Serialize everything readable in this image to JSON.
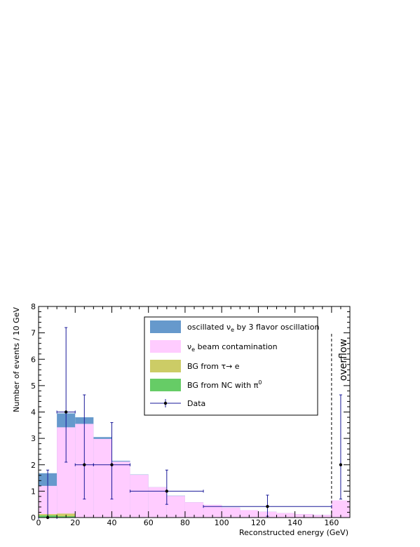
{
  "chart_data": {
    "type": "bar",
    "xlabel": "Reconstructed energy (GeV)",
    "ylabel": "Number of events / 10 GeV",
    "xlim": [
      0,
      170
    ],
    "ylim": [
      0,
      8
    ],
    "x_ticks": [
      0,
      20,
      40,
      60,
      80,
      100,
      120,
      140,
      160
    ],
    "y_ticks": [
      0,
      1,
      2,
      3,
      4,
      5,
      6,
      7,
      8
    ],
    "annotation": "overflow",
    "overflow_line_x": 160,
    "colors": {
      "oscillated": "#6699cc",
      "beam": "#ffccff",
      "tau": "#cccc66",
      "nc": "#66cc66",
      "data": "#1a1a99"
    },
    "series": [
      {
        "key": "nc",
        "edges": [
          0,
          10,
          20
        ],
        "values": [
          0.08,
          0.05
        ]
      },
      {
        "key": "tau",
        "edges": [
          0,
          10,
          20
        ],
        "values": [
          0.13,
          0.15
        ]
      },
      {
        "key": "beam",
        "edges": [
          0,
          10,
          20,
          30,
          40,
          50,
          60,
          70,
          80,
          90,
          100,
          110,
          120,
          130,
          140,
          150,
          160,
          170
        ],
        "values": [
          1.2,
          3.42,
          3.55,
          2.98,
          2.12,
          1.62,
          1.15,
          0.82,
          0.58,
          0.48,
          0.38,
          0.28,
          0.22,
          0.17,
          0.13,
          0.1,
          0.65
        ]
      },
      {
        "key": "oscillated",
        "edges": [
          0,
          10,
          20,
          30,
          40,
          50,
          60,
          70,
          80,
          90,
          100,
          110,
          120,
          130,
          140,
          150,
          160,
          170
        ],
        "values": [
          1.68,
          3.95,
          3.8,
          3.05,
          2.15,
          1.63,
          1.15,
          0.83,
          0.58,
          0.48,
          0.38,
          0.28,
          0.22,
          0.17,
          0.13,
          0.1,
          0.65
        ]
      }
    ],
    "data_points": [
      {
        "x": 5,
        "y": 0,
        "xerr": 5,
        "ylow": 0,
        "yhigh": 1.8
      },
      {
        "x": 15,
        "y": 4,
        "xerr": 5,
        "ylow": 2.1,
        "yhigh": 7.2
      },
      {
        "x": 25,
        "y": 2,
        "xerr": 5,
        "ylow": 0.7,
        "yhigh": 4.65
      },
      {
        "x": 40,
        "y": 2,
        "xerr": 10,
        "ylow": 0.7,
        "yhigh": 3.6
      },
      {
        "x": 70,
        "y": 1,
        "xerr": 20,
        "ylow": 0.5,
        "yhigh": 1.8
      },
      {
        "x": 125,
        "y": 0.42,
        "xerr": 35,
        "ylow": 0.05,
        "yhigh": 0.85
      },
      {
        "x": 165,
        "y": 2,
        "xerr": 0,
        "ylow": 0.7,
        "yhigh": 4.65
      }
    ],
    "legend": [
      {
        "key": "oscillated",
        "kind": "box",
        "label": "oscillated ν",
        "sub": "e",
        "rest": " by 3 flavor oscillation"
      },
      {
        "key": "beam",
        "kind": "box",
        "label": "ν",
        "sub": "e",
        "rest": " beam contamination"
      },
      {
        "key": "tau",
        "kind": "box",
        "label": "BG from τ→ e",
        "sub": "",
        "rest": ""
      },
      {
        "key": "nc",
        "kind": "box",
        "label": "BG from NC with π",
        "sup": "0",
        "rest": ""
      },
      {
        "key": "data",
        "kind": "marker",
        "label": "Data",
        "sub": "",
        "rest": ""
      }
    ]
  }
}
